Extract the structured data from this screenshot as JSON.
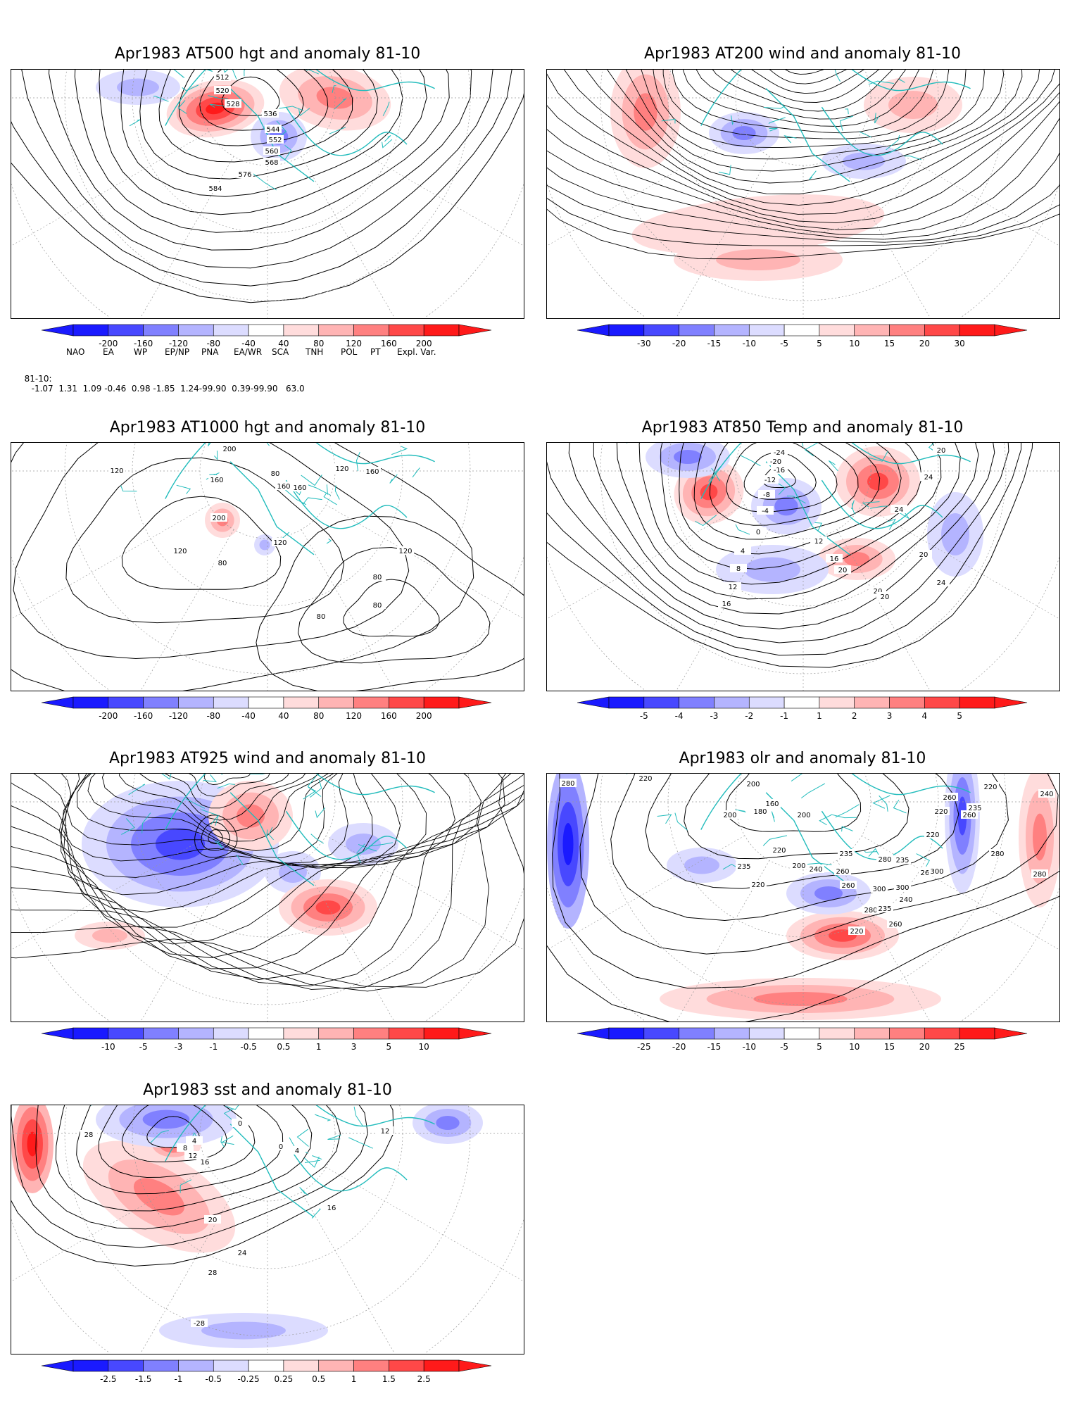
{
  "panels": [
    {
      "title": "Apr1983 AT500 hgt and anomaly 81-10",
      "contour_labels": [
        "512",
        "520",
        "528",
        "536",
        "544",
        "552",
        "560",
        "568",
        "576",
        "584"
      ],
      "colorbar": {
        "ticks": [
          "-200",
          "-160",
          "-120",
          "-80",
          "-40",
          "40",
          "80",
          "120",
          "160",
          "200"
        ]
      }
    },
    {
      "title": "Apr1983 AT200 wind and anomaly 81-10",
      "contour_labels": [],
      "colorbar": {
        "ticks": [
          "-30",
          "-20",
          "-15",
          "-10",
          "-5",
          "5",
          "10",
          "15",
          "20",
          "30"
        ]
      }
    },
    {
      "title": "Apr1983 AT1000 hgt and anomaly 81-10",
      "contour_labels": [
        "200",
        "120",
        "160",
        "80",
        "160",
        "120",
        "200",
        "160",
        "160",
        "120",
        "120",
        "80",
        "80",
        "80",
        "120",
        "80"
      ],
      "colorbar": {
        "ticks": [
          "-200",
          "-160",
          "-120",
          "-80",
          "-40",
          "40",
          "80",
          "120",
          "160",
          "200"
        ]
      }
    },
    {
      "title": "Apr1983 AT850 Temp and anomaly 81-10",
      "contour_labels": [
        "-24",
        "-20",
        "-16",
        "-12",
        "-8",
        "-4",
        "0",
        "4",
        "8",
        "12",
        "16",
        "20",
        "24",
        "20",
        "24",
        "20",
        "20",
        "24",
        "20",
        "16",
        "12"
      ],
      "colorbar": {
        "ticks": [
          "-5",
          "-4",
          "-3",
          "-2",
          "-1",
          "1",
          "2",
          "3",
          "4",
          "5"
        ]
      }
    },
    {
      "title": "Apr1983 AT925 wind and anomaly 81-10",
      "contour_labels": [],
      "colorbar": {
        "ticks": [
          "-10",
          "-5",
          "-3",
          "-1",
          "-0.5",
          "0.5",
          "1",
          "3",
          "5",
          "10"
        ]
      }
    },
    {
      "title": "Apr1983 olr and anomaly 81-10",
      "contour_labels": [
        "280",
        "220",
        "200",
        "180",
        "200",
        "160",
        "200",
        "220",
        "235",
        "220",
        "200",
        "240",
        "260",
        "235",
        "220",
        "260",
        "300",
        "280",
        "235",
        "240",
        "260",
        "280",
        "300",
        "235",
        "260",
        "220",
        "220",
        "235",
        "260",
        "240",
        "280",
        "300",
        "260",
        "220",
        "280"
      ],
      "colorbar": {
        "ticks": [
          "-25",
          "-20",
          "-15",
          "-10",
          "-5",
          "5",
          "10",
          "15",
          "20",
          "25"
        ]
      }
    },
    {
      "title": "Apr1983 sst and anomaly 81-10",
      "contour_labels": [
        "0",
        "4",
        "8",
        "12",
        "16",
        "20",
        "24",
        "28",
        "-28",
        "28",
        "0",
        "12",
        "16",
        "4"
      ],
      "colorbar": {
        "ticks": [
          "-2.5",
          "-1.5",
          "-1",
          "-0.5",
          "-0.25",
          "0.25",
          "0.5",
          "1",
          "1.5",
          "2.5"
        ]
      }
    }
  ],
  "teleconnection": {
    "headers": [
      "NAO",
      "EA",
      "WP",
      "EP/NP",
      "PNA",
      "EA/WR",
      "SCA",
      "TNH",
      "POL",
      "PT",
      "Expl. Var."
    ],
    "row_label": "81-10:",
    "values": "-1.07  1.31  1.09 -0.46  0.98 -1.85  1.24-99.90  0.39-99.90   63.0"
  },
  "colors": {
    "blues": [
      "#1a1aff",
      "#4848ff",
      "#8080ff",
      "#b4b4ff",
      "#dcdcff"
    ],
    "reds": [
      "#ffdcdc",
      "#ffb4b4",
      "#ff8080",
      "#ff4848",
      "#ff1a1a"
    ],
    "coast": "#22bcbc",
    "contour": "#000000",
    "grid": "#999999"
  }
}
